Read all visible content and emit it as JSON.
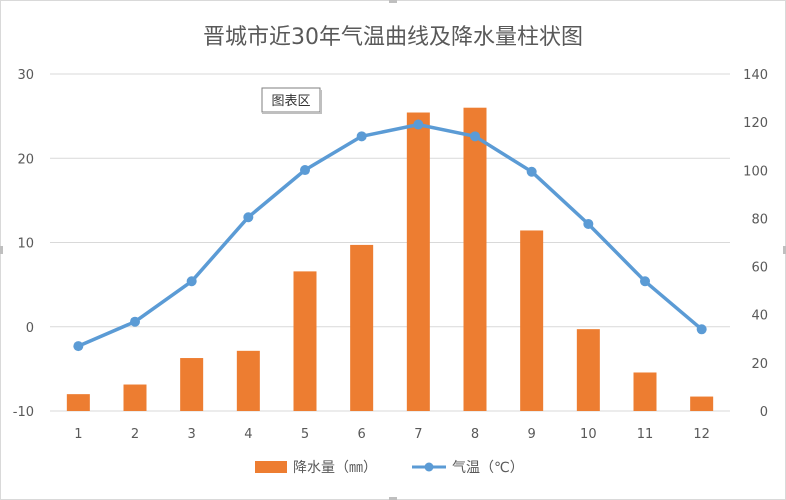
{
  "chart_data": {
    "type": "bar",
    "title": "晋城市近30年气温曲线及降水量柱状图",
    "categories": [
      "1",
      "2",
      "3",
      "4",
      "5",
      "6",
      "7",
      "8",
      "9",
      "10",
      "11",
      "12"
    ],
    "series": [
      {
        "name": "降水量（㎜）",
        "type": "bar",
        "axis": "right",
        "color": "#ED7D31",
        "values": [
          7,
          11,
          22,
          25,
          58,
          69,
          124,
          126,
          75,
          34,
          16,
          6
        ]
      },
      {
        "name": "气温（℃）",
        "type": "line",
        "axis": "left",
        "color": "#5B9BD5",
        "values": [
          -2.3,
          0.6,
          5.4,
          13,
          18.6,
          22.6,
          24,
          22.6,
          18.4,
          12.2,
          5.4,
          -0.3
        ]
      }
    ],
    "left_axis": {
      "ylim": [
        -10,
        30
      ],
      "ticks": [
        "-10",
        "0",
        "10",
        "20",
        "30"
      ]
    },
    "right_axis": {
      "ylim": [
        0,
        140
      ],
      "ticks": [
        "0",
        "20",
        "40",
        "60",
        "80",
        "100",
        "120",
        "140"
      ]
    },
    "grid": true,
    "legend_position": "bottom",
    "annotation": "图表区"
  }
}
